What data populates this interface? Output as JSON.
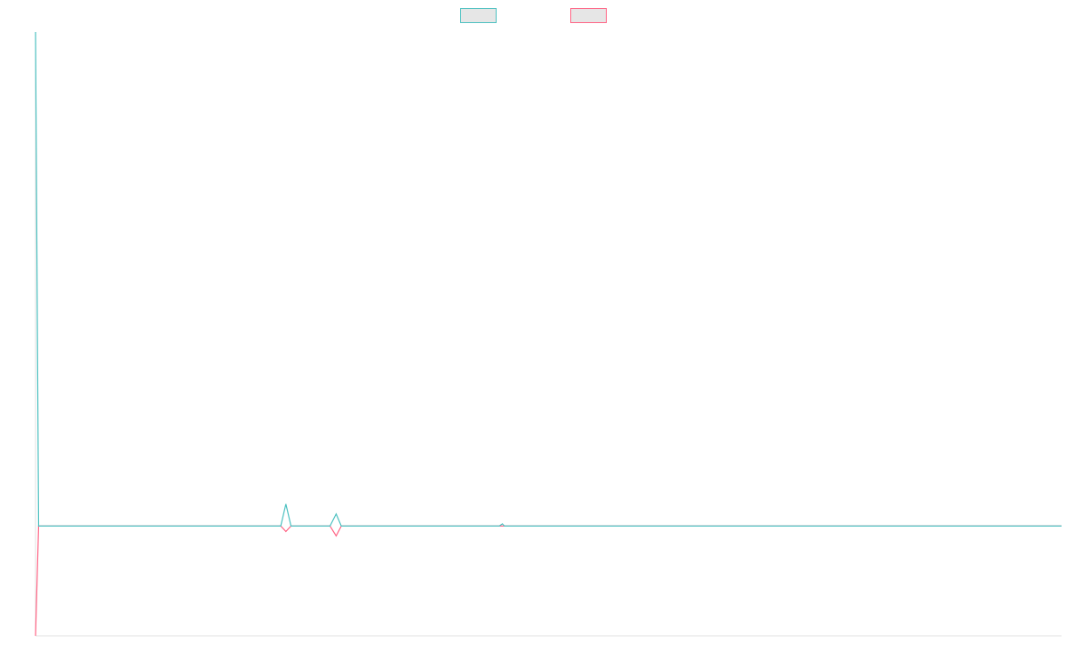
{
  "chart_data": {
    "type": "line",
    "x": [
      0,
      0.3,
      1.3,
      15.5,
      23.9,
      24.4,
      24.9,
      28.7,
      29.3,
      29.8,
      45.2,
      45.5,
      45.7,
      100
    ],
    "series": [
      {
        "color": "#4bc0c0",
        "values": [
          4.5,
          0,
          0,
          0,
          0,
          0.2,
          0,
          0,
          0.11,
          0,
          0,
          0.02,
          0,
          0
        ]
      },
      {
        "color": "#ff6384",
        "values": [
          -1,
          0,
          0,
          0,
          0,
          -0.05,
          0,
          0,
          -0.09,
          0,
          0,
          0,
          0,
          0
        ]
      }
    ],
    "xlim": [
      0,
      100
    ],
    "ylim": [
      -1,
      4.5
    ],
    "legend": "top"
  }
}
